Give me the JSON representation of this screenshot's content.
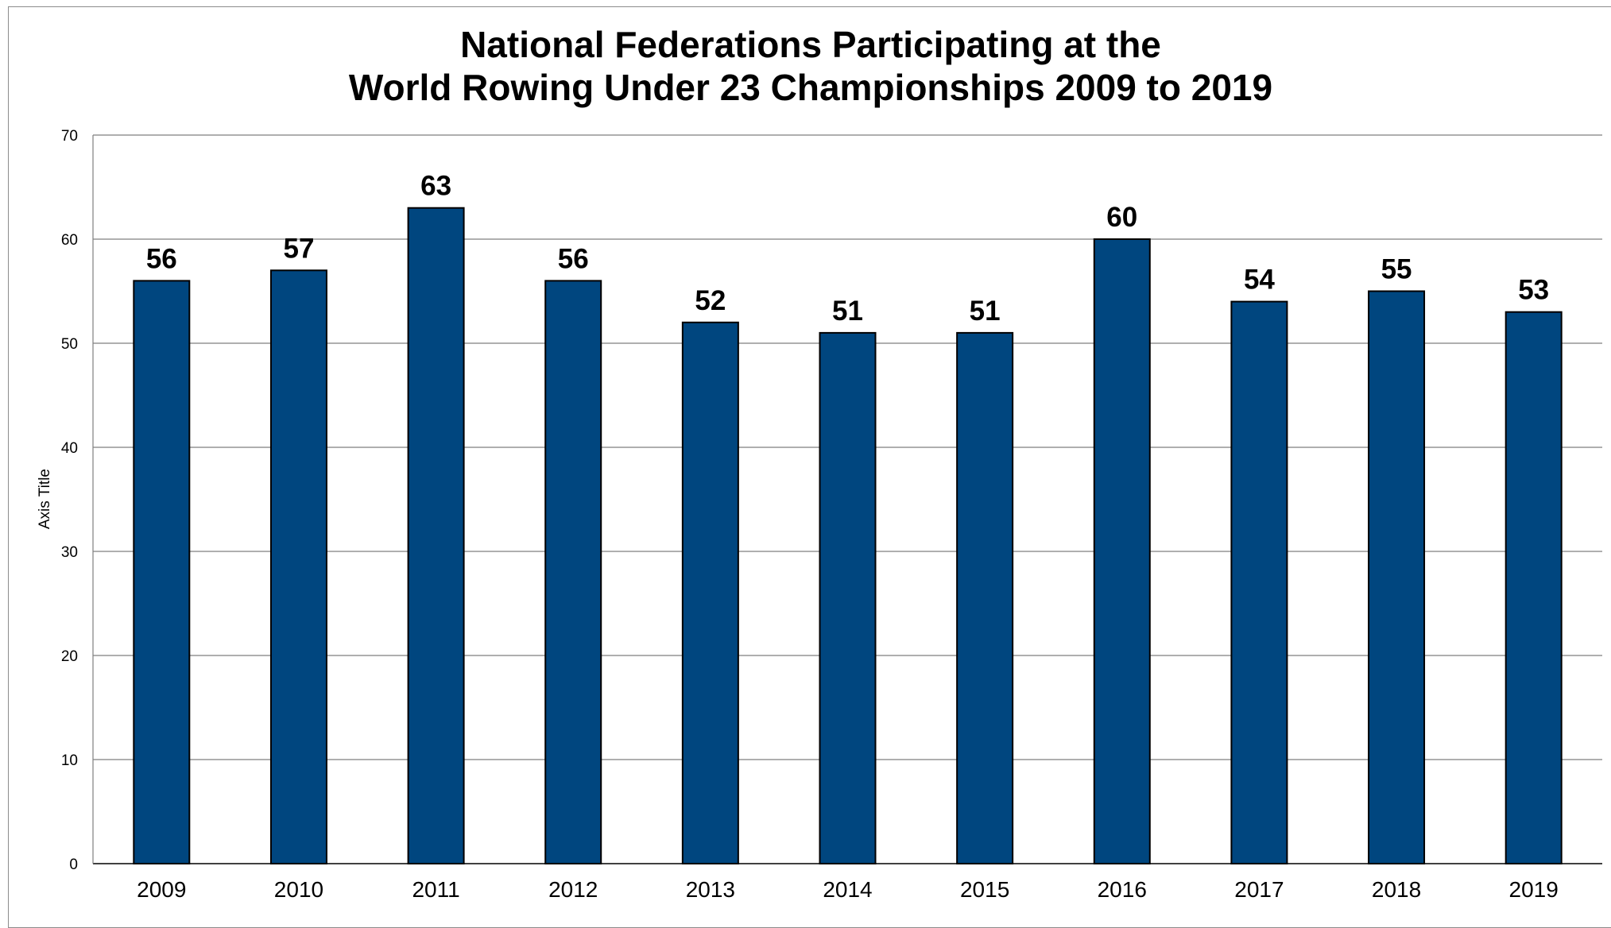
{
  "chart_data": {
    "type": "bar",
    "title": [
      "National Federations Participating at the",
      "World Rowing Under 23 Championships 2009 to 2019"
    ],
    "ylabel": "Axis Title",
    "xlabel": "",
    "categories": [
      "2009",
      "2010",
      "2011",
      "2012",
      "2013",
      "2014",
      "2015",
      "2016",
      "2017",
      "2018",
      "2019"
    ],
    "values": [
      56,
      57,
      63,
      56,
      52,
      51,
      51,
      60,
      54,
      55,
      53
    ],
    "data_labels": [
      "56",
      "57",
      "63",
      "56",
      "52",
      "51",
      "51",
      "60",
      "54",
      "55",
      "53"
    ],
    "yticks": [
      "0",
      "10",
      "20",
      "30",
      "40",
      "50",
      "60",
      "70"
    ],
    "ylim": [
      0,
      70
    ],
    "grid": true,
    "legend": "none",
    "bar_color": "#00467f"
  }
}
